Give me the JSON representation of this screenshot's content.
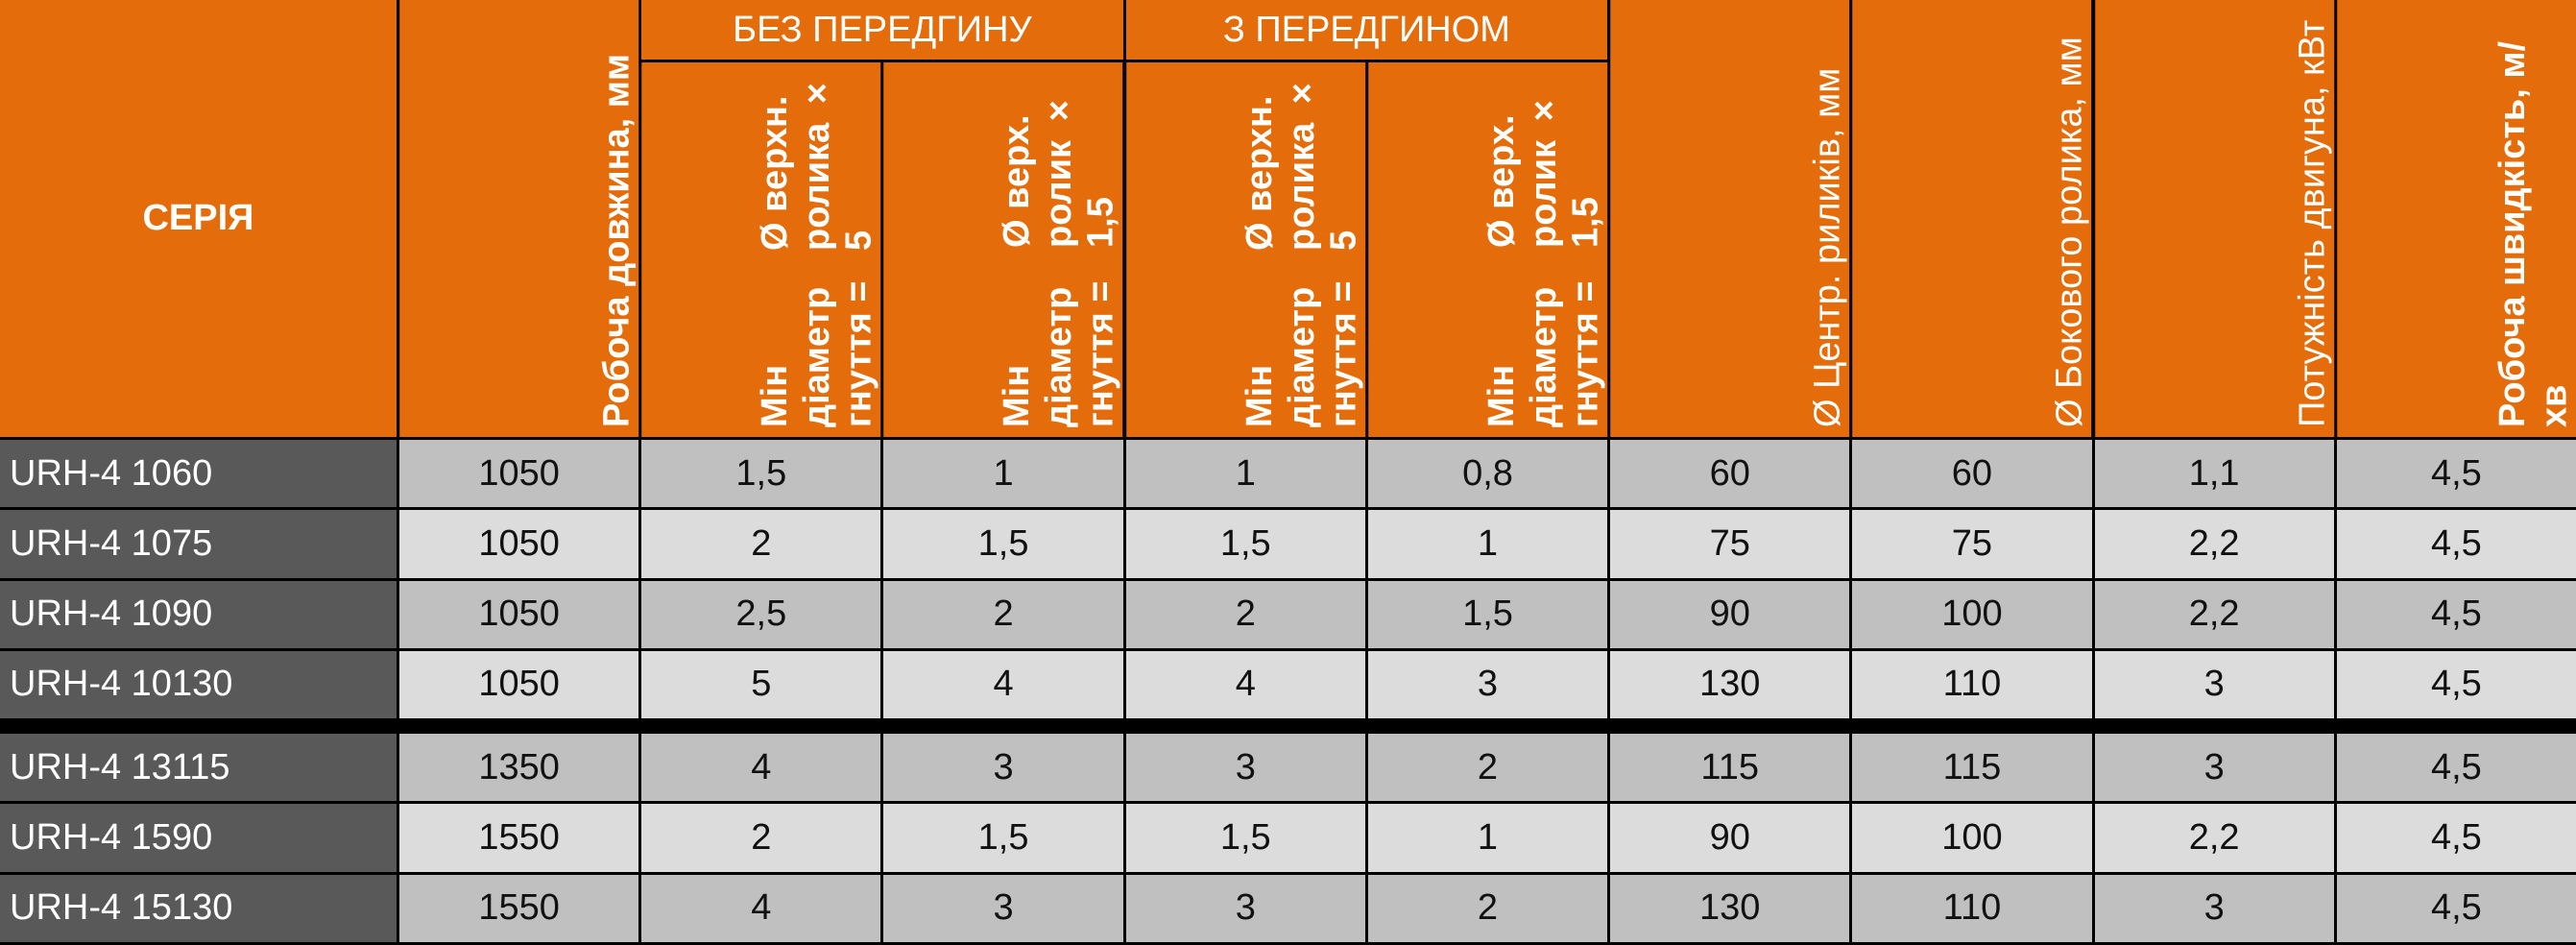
{
  "header": {
    "series": "СЕРІЯ",
    "group_without": "БЕЗ ПЕРЕДГИНУ",
    "group_with": "З ПЕРЕДГИНОМ",
    "working_length": "Робоча довжина, мм",
    "min_d_upper_5_line1": "Мін діаметр гнуття =",
    "min_d_upper_5_line2": "Ø верхн.  ролика × 5",
    "min_d_upper_15_line1": "Мін діаметр гнуття =",
    "min_d_upper_15_line2": "Ø верх.  ролик × 1,5",
    "min_d_upper_5b_line1": "Мін діаметр гнуття =",
    "min_d_upper_5b_line2": "Ø верхн.  ролика × 5",
    "min_d_upper_15b_line1": "Мін діаметр гнуття =",
    "min_d_upper_15b_line2": "Ø верх.  ролик × 1,5",
    "center_rollers": "Ø Центр. риликів, мм",
    "side_roller": "Ø Бокового ролика, мм",
    "motor_power": "Потужність двигуна, кВт",
    "working_speed": "Робоча швидкість, м/хв"
  },
  "rows": [
    [
      "URH-4 1060",
      "1050",
      "1,5",
      "1",
      "1",
      "0,8",
      "60",
      "60",
      "1,1",
      "4,5"
    ],
    [
      "URH-4 1075",
      "1050",
      "2",
      "1,5",
      "1,5",
      "1",
      "75",
      "75",
      "2,2",
      "4,5"
    ],
    [
      "URH-4 1090",
      "1050",
      "2,5",
      "2",
      "2",
      "1,5",
      "90",
      "100",
      "2,2",
      "4,5"
    ],
    [
      "URH-4 10130",
      "1050",
      "5",
      "4",
      "4",
      "3",
      "130",
      "110",
      "3",
      "4,5"
    ],
    [
      "URH-4 13115",
      "1350",
      "4",
      "3",
      "3",
      "2",
      "115",
      "115",
      "3",
      "4,5"
    ],
    [
      "URH-4 1590",
      "1550",
      "2",
      "1,5",
      "1,5",
      "1",
      "90",
      "100",
      "2,2",
      "4,5"
    ],
    [
      "URH-4 15130",
      "1550",
      "4",
      "3",
      "3",
      "2",
      "130",
      "110",
      "3",
      "4,5"
    ]
  ],
  "colors": {
    "header_orange": "#e46c0a",
    "series_gray": "#595959",
    "row_dark": "#c0c0c0",
    "row_light": "#dcdcdc"
  }
}
